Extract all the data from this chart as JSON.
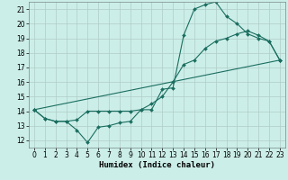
{
  "xlabel": "Humidex (Indice chaleur)",
  "ylabel": "",
  "bg_color": "#cceee8",
  "grid_color": "#b0ccc8",
  "line_color": "#1a6e60",
  "xlim": [
    -0.5,
    23.5
  ],
  "ylim": [
    11.5,
    21.5
  ],
  "xticks": [
    0,
    1,
    2,
    3,
    4,
    5,
    6,
    7,
    8,
    9,
    10,
    11,
    12,
    13,
    14,
    15,
    16,
    17,
    18,
    19,
    20,
    21,
    22,
    23
  ],
  "yticks": [
    12,
    13,
    14,
    15,
    16,
    17,
    18,
    19,
    20,
    21
  ],
  "line1_x": [
    0,
    1,
    2,
    3,
    4,
    5,
    6,
    7,
    8,
    9,
    10,
    11,
    12,
    13,
    14,
    15,
    16,
    17,
    18,
    19,
    20,
    21,
    22,
    23
  ],
  "line1_y": [
    14.1,
    13.5,
    13.3,
    13.3,
    12.7,
    11.85,
    12.9,
    13.0,
    13.2,
    13.3,
    14.1,
    14.1,
    15.5,
    15.6,
    19.2,
    21.0,
    21.3,
    21.5,
    20.5,
    20.0,
    19.3,
    19.0,
    18.8,
    17.5
  ],
  "line2_x": [
    0,
    1,
    2,
    3,
    4,
    5,
    6,
    7,
    8,
    9,
    10,
    11,
    12,
    13,
    14,
    15,
    16,
    17,
    18,
    19,
    20,
    21,
    22,
    23
  ],
  "line2_y": [
    14.1,
    13.5,
    13.3,
    13.3,
    13.4,
    14.0,
    14.0,
    14.0,
    14.0,
    14.0,
    14.1,
    14.5,
    15.0,
    16.0,
    17.2,
    17.5,
    18.3,
    18.8,
    19.0,
    19.3,
    19.5,
    19.2,
    18.8,
    17.5
  ],
  "line3_x": [
    0,
    23
  ],
  "line3_y": [
    14.1,
    17.5
  ],
  "marker_size": 2.0,
  "line_width": 0.8,
  "xlabel_fontsize": 6.5,
  "tick_fontsize": 5.5
}
